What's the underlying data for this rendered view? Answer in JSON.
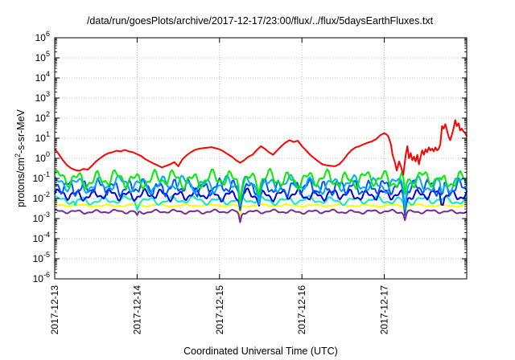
{
  "chart_data": {
    "type": "line",
    "title": "/data/run/goesPlots/archive/2017-12-17/23:00/flux/../flux/5daysEarthFluxes.txt",
    "xlabel": "Coordinated Universal Time (UTC)",
    "ylabel": "protons/cm²-s-sr-MeV",
    "yscale": "log",
    "ylim": [
      1e-06,
      1000000.0
    ],
    "xlim": [
      0,
      5
    ],
    "x_tick_labels": [
      "2017-12-13",
      "2017-12-14",
      "2017-12-15",
      "2017-12-16",
      "2017-12-17"
    ],
    "x_tick_positions": [
      0,
      1,
      2,
      3,
      4
    ],
    "y_tick_exponents": [
      -6,
      -5,
      -4,
      -3,
      -2,
      -1,
      0,
      1,
      2,
      3,
      4,
      5,
      6
    ],
    "grid": true,
    "legend": "none",
    "series": [
      {
        "color": "#ff0000",
        "points": [
          [
            0.0,
            3
          ],
          [
            0.05,
            1.6
          ],
          [
            0.1,
            0.8
          ],
          [
            0.15,
            0.45
          ],
          [
            0.2,
            0.32
          ],
          [
            0.25,
            0.26
          ],
          [
            0.3,
            0.24
          ],
          [
            0.35,
            0.3
          ],
          [
            0.4,
            0.27
          ],
          [
            0.45,
            0.42
          ],
          [
            0.5,
            0.7
          ],
          [
            0.55,
            1.0
          ],
          [
            0.6,
            1.4
          ],
          [
            0.65,
            1.8
          ],
          [
            0.7,
            2.0
          ],
          [
            0.75,
            2.4
          ],
          [
            0.8,
            2.2
          ],
          [
            0.85,
            2.6
          ],
          [
            0.9,
            2.2
          ],
          [
            0.95,
            2.0
          ],
          [
            1.0,
            1.6
          ],
          [
            1.05,
            1.3
          ],
          [
            1.1,
            0.9
          ],
          [
            1.15,
            0.7
          ],
          [
            1.2,
            0.55
          ],
          [
            1.25,
            0.45
          ],
          [
            1.3,
            0.35
          ],
          [
            1.35,
            0.42
          ],
          [
            1.4,
            0.5
          ],
          [
            1.45,
            0.65
          ],
          [
            1.5,
            0.4
          ],
          [
            1.55,
            0.9
          ],
          [
            1.6,
            1.4
          ],
          [
            1.65,
            2.0
          ],
          [
            1.7,
            2.6
          ],
          [
            1.75,
            3.0
          ],
          [
            1.8,
            3.2
          ],
          [
            1.85,
            3.4
          ],
          [
            1.9,
            3.6
          ],
          [
            1.95,
            3.2
          ],
          [
            2.0,
            2.8
          ],
          [
            2.05,
            2.2
          ],
          [
            2.1,
            1.6
          ],
          [
            2.15,
            1.2
          ],
          [
            2.2,
            0.8
          ],
          [
            2.25,
            0.6
          ],
          [
            2.3,
            0.8
          ],
          [
            2.35,
            1.2
          ],
          [
            2.4,
            1.5
          ],
          [
            2.45,
            2.5
          ],
          [
            2.5,
            4.0
          ],
          [
            2.55,
            3.0
          ],
          [
            2.6,
            2.0
          ],
          [
            2.65,
            1.5
          ],
          [
            2.7,
            2.5
          ],
          [
            2.75,
            4.0
          ],
          [
            2.8,
            6.0
          ],
          [
            2.85,
            8.0
          ],
          [
            2.9,
            6.5
          ],
          [
            2.95,
            7.5
          ],
          [
            3.0,
            4.0
          ],
          [
            3.05,
            2.5
          ],
          [
            3.1,
            1.5
          ],
          [
            3.15,
            1.0
          ],
          [
            3.2,
            0.7
          ],
          [
            3.25,
            0.5
          ],
          [
            3.3,
            0.45
          ],
          [
            3.35,
            0.42
          ],
          [
            3.4,
            0.4
          ],
          [
            3.45,
            0.5
          ],
          [
            3.5,
            0.8
          ],
          [
            3.55,
            1.5
          ],
          [
            3.6,
            2.5
          ],
          [
            3.65,
            3.5
          ],
          [
            3.7,
            4.0
          ],
          [
            3.75,
            5.0
          ],
          [
            3.8,
            6.0
          ],
          [
            3.85,
            7.0
          ],
          [
            3.9,
            9.0
          ],
          [
            3.95,
            14.0
          ],
          [
            4.0,
            18.0
          ],
          [
            4.03,
            15.0
          ],
          [
            4.05,
            12.0
          ],
          [
            4.08,
            5.0
          ],
          [
            4.1,
            1.5
          ],
          [
            4.13,
            0.6
          ],
          [
            4.15,
            0.25
          ],
          [
            4.18,
            0.7
          ],
          [
            4.2,
            0.4
          ],
          [
            4.23,
            0.15
          ],
          [
            4.26,
            1.5
          ],
          [
            4.28,
            4.0
          ],
          [
            4.3,
            1.0
          ],
          [
            4.32,
            1.8
          ],
          [
            4.34,
            0.8
          ],
          [
            4.36,
            1.2
          ],
          [
            4.38,
            0.7
          ],
          [
            4.4,
            1.5
          ],
          [
            4.42,
            0.5
          ],
          [
            4.44,
            1.2
          ],
          [
            4.46,
            2.5
          ],
          [
            4.48,
            1.5
          ],
          [
            4.5,
            2.8
          ],
          [
            4.52,
            2.0
          ],
          [
            4.54,
            3.5
          ],
          [
            4.56,
            2.5
          ],
          [
            4.58,
            3.0
          ],
          [
            4.6,
            2.2
          ],
          [
            4.62,
            3.5
          ],
          [
            4.64,
            2.5
          ],
          [
            4.66,
            3.0
          ],
          [
            4.68,
            5.0
          ],
          [
            4.7,
            40.0
          ],
          [
            4.72,
            30.0
          ],
          [
            4.74,
            50.0
          ],
          [
            4.76,
            25.0
          ],
          [
            4.78,
            12.0
          ],
          [
            4.8,
            8.0
          ],
          [
            4.82,
            15.0
          ],
          [
            4.84,
            30.0
          ],
          [
            4.86,
            80.0
          ],
          [
            4.88,
            40.0
          ],
          [
            4.9,
            55.0
          ],
          [
            4.92,
            25.0
          ],
          [
            4.94,
            30.0
          ],
          [
            4.96,
            22.0
          ],
          [
            4.98,
            18.0
          ],
          [
            5.0,
            12.0
          ]
        ]
      },
      {
        "color": "#00ee00",
        "baseline": 0.09,
        "amplitude": 0.55,
        "period": 0.037,
        "phase": 0.3,
        "dips": [
          [
            2.25,
            0.2
          ],
          [
            2.48,
            0.35
          ],
          [
            4.25,
            0.15
          ],
          [
            4.7,
            0.35
          ]
        ]
      },
      {
        "color": "#00aaff",
        "baseline": 0.05,
        "amplitude": 0.5,
        "period": 0.041,
        "phase": 1.1,
        "dips": [
          [
            2.25,
            0.15
          ],
          [
            2.48,
            0.3
          ],
          [
            4.25,
            0.12
          ],
          [
            4.7,
            0.3
          ]
        ]
      },
      {
        "color": "#0055ff",
        "baseline": 0.035,
        "amplitude": 0.5,
        "period": 0.029,
        "phase": 2.0,
        "dips": [
          [
            2.25,
            0.12
          ],
          [
            2.48,
            0.3
          ],
          [
            4.25,
            0.1
          ],
          [
            4.7,
            0.3
          ]
        ]
      },
      {
        "color": "#00eecc",
        "baseline": 0.008,
        "amplitude": 0.25,
        "period": 0.044,
        "phase": 0.7,
        "dips": [
          [
            0.25,
            0.45
          ],
          [
            1.0,
            0.5
          ],
          [
            2.25,
            0.25
          ],
          [
            4.25,
            0.3
          ]
        ]
      },
      {
        "color": "#0000dd",
        "baseline": 0.015,
        "amplitude": 0.35,
        "period": 0.033,
        "phase": 0.0,
        "dips": [
          [
            2.25,
            0.2
          ],
          [
            2.48,
            0.4
          ],
          [
            4.25,
            0.2
          ],
          [
            4.7,
            0.4
          ]
        ]
      },
      {
        "color": "#ffff00",
        "baseline": 0.0045,
        "amplitude": 0.08,
        "period": 0.05,
        "phase": 1.5,
        "dips": [
          [
            2.25,
            0.35
          ],
          [
            4.25,
            0.4
          ]
        ]
      },
      {
        "color": "#7b2a8f",
        "baseline": 0.0022,
        "amplitude": 0.12,
        "period": 0.038,
        "phase": 0.9,
        "dips": [
          [
            2.25,
            0.3
          ],
          [
            4.25,
            0.45
          ],
          [
            1.0,
            0.6
          ]
        ]
      }
    ]
  }
}
